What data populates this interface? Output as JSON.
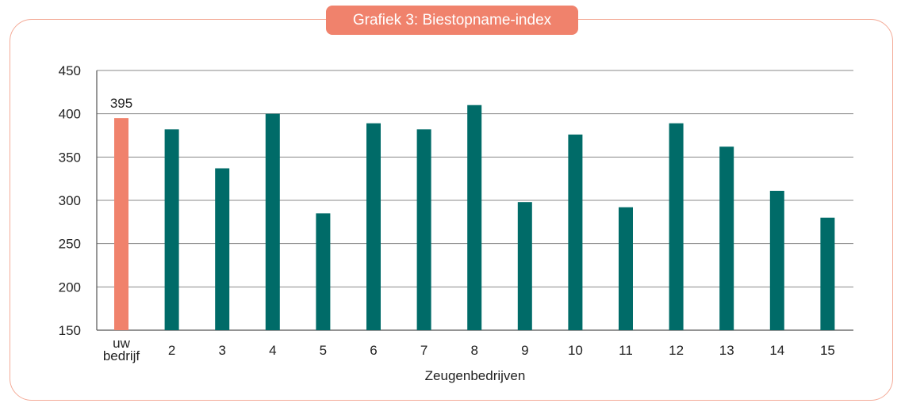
{
  "chart_data": {
    "type": "bar",
    "title": "Grafiek 3: Biestopname-index",
    "xlabel": "Zeugenbedrijven",
    "ylabel": "",
    "ylim": [
      150,
      450
    ],
    "yticks": [
      150,
      200,
      250,
      300,
      350,
      400,
      450
    ],
    "grid": true,
    "categories": [
      [
        "uw",
        "bedrijf"
      ],
      "2",
      "3",
      "4",
      "5",
      "6",
      "7",
      "8",
      "9",
      "10",
      "11",
      "12",
      "13",
      "14",
      "15"
    ],
    "values": [
      395,
      382,
      337,
      400,
      285,
      389,
      382,
      410,
      298,
      376,
      292,
      389,
      362,
      311,
      280
    ],
    "highlight_index": 0,
    "data_labels": [
      {
        "index": 0,
        "text": "395"
      }
    ],
    "colors": {
      "highlight": "#f0826c",
      "bar": "#006b68",
      "grid": "#8a8a8a",
      "frame": "#f4ab98"
    }
  }
}
